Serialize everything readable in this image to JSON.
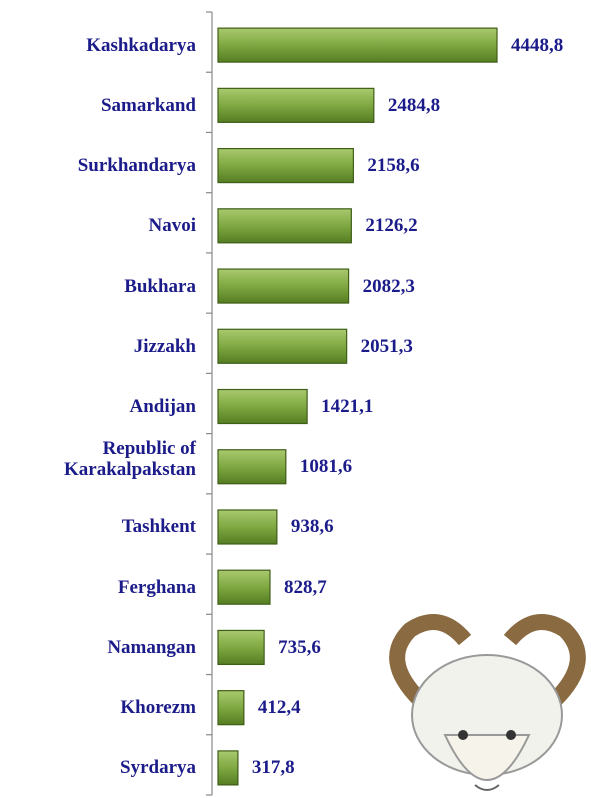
{
  "chart_data": {
    "type": "hbar",
    "categories": [
      "Kashkadarya",
      "Samarkand",
      "Surkhandarya",
      "Navoi",
      "Bukhara",
      "Jizzakh",
      "Andijan",
      "Republic of Karakalpakstan",
      "Tashkent",
      "Ferghana",
      "Namangan",
      "Khorezm",
      "Syrdarya"
    ],
    "values": [
      4448.8,
      2484.8,
      2158.6,
      2126.2,
      2082.3,
      2051.3,
      1421.1,
      1081.6,
      938.6,
      828.7,
      735.6,
      412.4,
      317.8
    ],
    "value_labels": [
      "4448,8",
      "2484,8",
      "2158,6",
      "2126,2",
      "2082,3",
      "2051,3",
      "1421,1",
      "1081,6",
      "938,6",
      "828,7",
      "735,6",
      "412,4",
      "317,8"
    ],
    "color": "#77a23b"
  }
}
